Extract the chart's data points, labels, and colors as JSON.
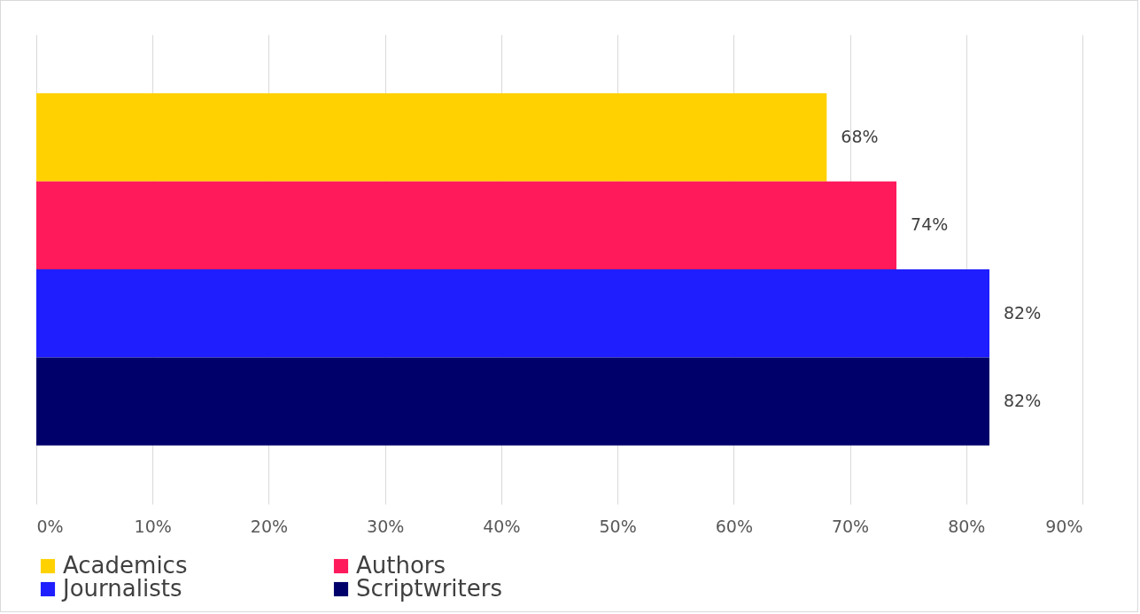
{
  "chart_data": {
    "type": "bar",
    "orientation": "horizontal",
    "categories": [
      null
    ],
    "series": [
      {
        "name": "Academics",
        "color": "#ffd100",
        "values": [
          68
        ],
        "value_labels": [
          "68%"
        ]
      },
      {
        "name": "Authors",
        "color": "#ff1a5b",
        "values": [
          74
        ],
        "value_labels": [
          "74%"
        ]
      },
      {
        "name": "Journalists",
        "color": "#1e1eff",
        "values": [
          82
        ],
        "value_labels": [
          "82%"
        ]
      },
      {
        "name": "Scriptwriters",
        "color": "#00006b",
        "values": [
          82
        ],
        "value_labels": [
          "82%"
        ]
      }
    ],
    "xlim": [
      0,
      90
    ],
    "xticks": [
      {
        "value": 0,
        "label": "0%"
      },
      {
        "value": 10,
        "label": "10%"
      },
      {
        "value": 20,
        "label": "20%"
      },
      {
        "value": 30,
        "label": "30%"
      },
      {
        "value": 40,
        "label": "40%"
      },
      {
        "value": 50,
        "label": "50%"
      },
      {
        "value": 60,
        "label": "60%"
      },
      {
        "value": 70,
        "label": "70%"
      },
      {
        "value": 80,
        "label": "80%"
      },
      {
        "value": 90,
        "label": "90%"
      }
    ],
    "grid": "x",
    "legend": "bottom"
  }
}
